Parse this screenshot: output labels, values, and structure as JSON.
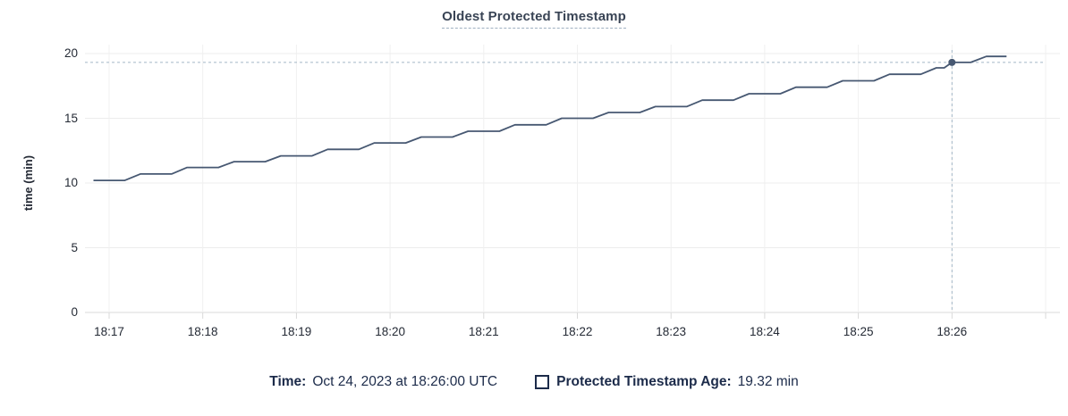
{
  "title": "Oldest Protected Timestamp",
  "footer": {
    "time_label": "Time:",
    "time_value": "Oct 24, 2023 at 18:26:00 UTC",
    "series_label": "Protected Timestamp Age:",
    "series_value": "19.32 min"
  },
  "colors": {
    "line": "#475872",
    "dot": "#475872",
    "title_text": "#394455",
    "footer_text": "#1c2b4a",
    "grid_vertical": "#f0f0f0",
    "grid_horizontal": "#ececec",
    "axis_line": "#d9d9d9",
    "tick_text": "#242a35",
    "crosshair": "#a4b7c6"
  },
  "icons": {
    "legend_swatch": "square-outline-icon"
  },
  "chart_data": {
    "type": "line",
    "title": "Oldest Protected Timestamp",
    "xlabel": "",
    "ylabel": "time (min)",
    "ylim": [
      0,
      20
    ],
    "y_ticks": [
      0,
      5,
      10,
      15,
      20
    ],
    "x_tick_labels": [
      "18:17",
      "18:18",
      "18:19",
      "18:20",
      "18:21",
      "18:22",
      "18:23",
      "18:24",
      "18:25",
      "18:26"
    ],
    "x_unit": "minutes after 18:17 UTC",
    "x_gridlines_minutes": [
      0,
      1,
      2,
      3,
      4,
      5,
      6,
      7,
      8,
      9,
      10
    ],
    "grid": true,
    "legend_position": "bottom",
    "series": [
      {
        "name": "Protected Timestamp Age",
        "style": "stepped-line",
        "points": [
          [
            -0.167,
            10.2
          ],
          [
            0.167,
            10.2
          ],
          [
            0.333,
            10.7
          ],
          [
            0.667,
            10.7
          ],
          [
            0.833,
            11.2
          ],
          [
            1.167,
            11.2
          ],
          [
            1.333,
            11.65
          ],
          [
            1.667,
            11.65
          ],
          [
            1.833,
            12.1
          ],
          [
            2.167,
            12.1
          ],
          [
            2.333,
            12.6
          ],
          [
            2.667,
            12.6
          ],
          [
            2.833,
            13.1
          ],
          [
            3.167,
            13.1
          ],
          [
            3.333,
            13.55
          ],
          [
            3.667,
            13.55
          ],
          [
            3.833,
            14.0
          ],
          [
            4.167,
            14.0
          ],
          [
            4.333,
            14.5
          ],
          [
            4.667,
            14.5
          ],
          [
            4.833,
            15.0
          ],
          [
            5.167,
            15.0
          ],
          [
            5.333,
            15.45
          ],
          [
            5.667,
            15.45
          ],
          [
            5.833,
            15.9
          ],
          [
            6.167,
            15.9
          ],
          [
            6.333,
            16.4
          ],
          [
            6.667,
            16.4
          ],
          [
            6.833,
            16.9
          ],
          [
            7.167,
            16.9
          ],
          [
            7.333,
            17.4
          ],
          [
            7.667,
            17.4
          ],
          [
            7.833,
            17.9
          ],
          [
            8.167,
            17.9
          ],
          [
            8.333,
            18.4
          ],
          [
            8.667,
            18.4
          ],
          [
            8.833,
            18.9
          ],
          [
            8.917,
            18.9
          ],
          [
            9.0,
            19.32
          ],
          [
            9.2,
            19.32
          ],
          [
            9.367,
            19.78
          ],
          [
            9.583,
            19.78
          ]
        ]
      }
    ],
    "highlight": {
      "x_minute": 9.0,
      "time_label": "18:26:00 UTC",
      "value": 19.32,
      "crosshair": true
    }
  }
}
